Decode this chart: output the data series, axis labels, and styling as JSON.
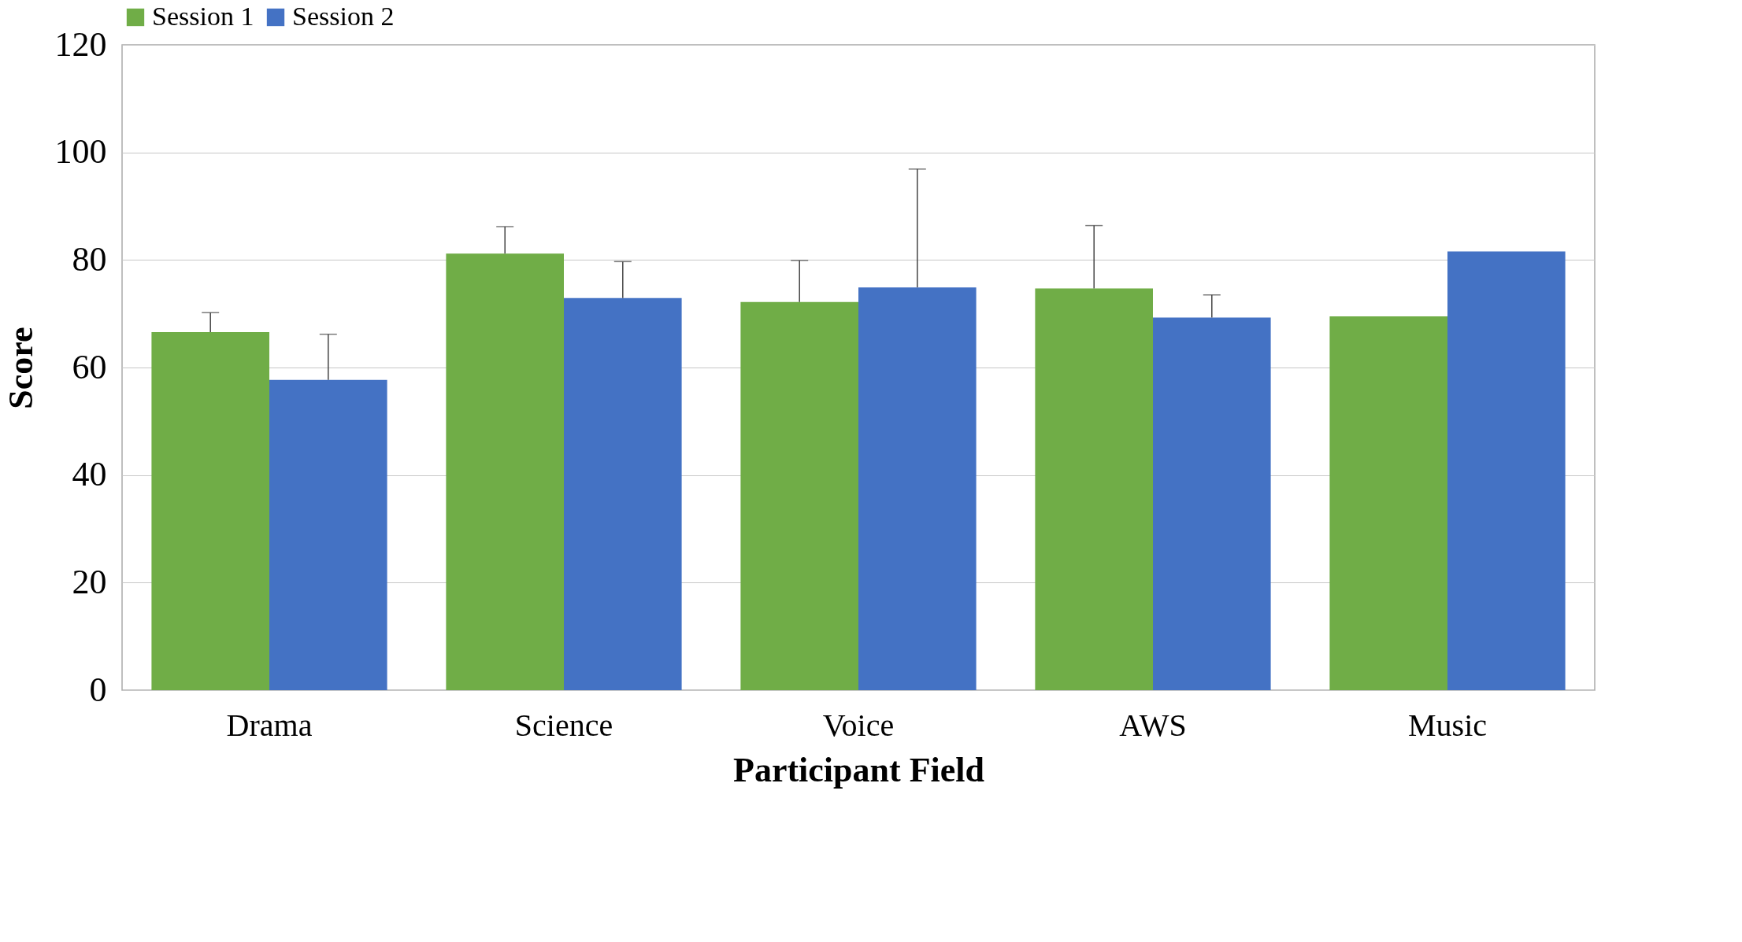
{
  "chart_data": {
    "type": "bar",
    "xlabel": "Participant Field",
    "ylabel": "Score",
    "categories": [
      "Drama",
      "Science",
      "Voice",
      "AWS",
      "Music"
    ],
    "series": [
      {
        "name": "Session 1",
        "color": "#70ad47",
        "values": [
          66.6,
          81.2,
          72.2,
          74.7,
          69.5
        ],
        "errors": [
          [
            66.6,
            70.2
          ],
          [
            81.2,
            86.2
          ],
          [
            72.2,
            79.9
          ],
          [
            74.7,
            86.4
          ],
          null
        ]
      },
      {
        "name": "Session 2",
        "color": "#4472c4",
        "values": [
          57.7,
          72.9,
          74.9,
          69.3,
          81.6
        ],
        "errors": [
          [
            57.7,
            66.2
          ],
          [
            72.9,
            79.7
          ],
          [
            74.9,
            96.9
          ],
          [
            69.3,
            73.5
          ],
          null
        ]
      }
    ],
    "ylim": [
      0,
      120
    ],
    "yticks": [
      0,
      20,
      40,
      60,
      80,
      100,
      120
    ],
    "grid": "y",
    "legend": "top"
  }
}
